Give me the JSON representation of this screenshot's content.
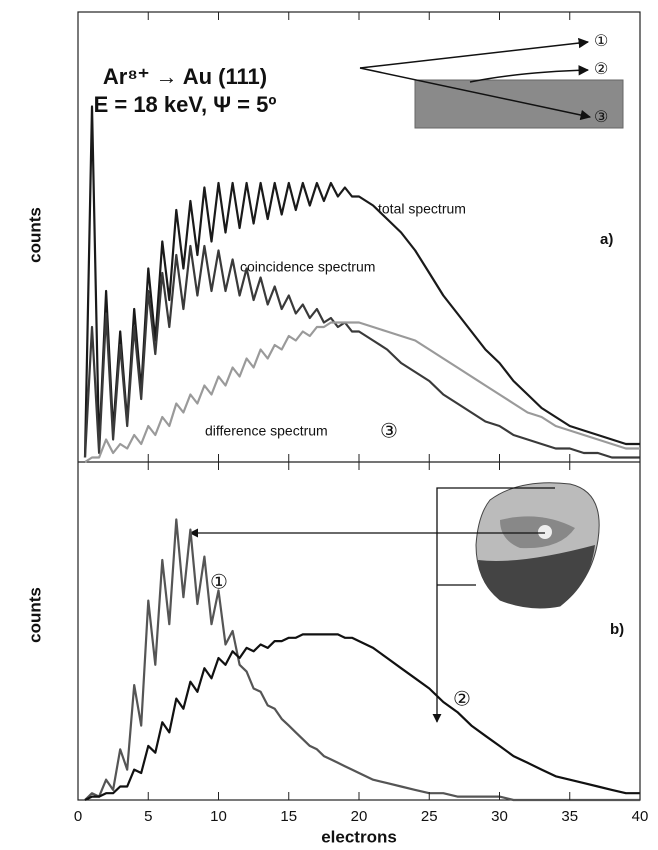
{
  "chart_data": [
    {
      "type": "line",
      "title": "Ar⁸⁺ → Au (111)",
      "subtitle": "E = 18 keV, Ψ = 5º",
      "panel_label": "a)",
      "ylabel": "counts",
      "annotation": "③",
      "inset_labels": [
        "①",
        "②",
        "③"
      ],
      "xlim": [
        0,
        40
      ],
      "ylim": [
        0,
        100
      ],
      "x": [
        0.5,
        1,
        1.5,
        2,
        2.5,
        3,
        3.5,
        4,
        4.5,
        5,
        5.5,
        6,
        6.5,
        7,
        7.5,
        8,
        8.5,
        9,
        9.5,
        10,
        10.5,
        11,
        11.5,
        12,
        12.5,
        13,
        13.5,
        14,
        14.5,
        15,
        15.5,
        16,
        16.5,
        17,
        17.5,
        18,
        18.5,
        19,
        19.5,
        20,
        21,
        22,
        23,
        24,
        25,
        26,
        27,
        28,
        29,
        30,
        31,
        32,
        33,
        34,
        35,
        36,
        37,
        38,
        39,
        40
      ],
      "series": [
        {
          "name": "total spectrum",
          "color": "#1a1a1a",
          "values": [
            1,
            79,
            3,
            38,
            7,
            29,
            9,
            34,
            16,
            43,
            27,
            49,
            36,
            56,
            43,
            58,
            46,
            61,
            49,
            62,
            51,
            62,
            52,
            62,
            53,
            62,
            54,
            62,
            55,
            62,
            56,
            62,
            57,
            62,
            58,
            62,
            59,
            61,
            59,
            59,
            57,
            54,
            51,
            47,
            42,
            37,
            33,
            29,
            25,
            22,
            18,
            15,
            12,
            10,
            8,
            7,
            6,
            5,
            4,
            4
          ]
        },
        {
          "name": "coincidence spectrum",
          "color": "#3a3a3a",
          "values": [
            1,
            30,
            2,
            33,
            5,
            26,
            8,
            30,
            14,
            38,
            24,
            42,
            30,
            46,
            34,
            48,
            37,
            48,
            38,
            47,
            38,
            45,
            37,
            43,
            36,
            41,
            35,
            39,
            34,
            37,
            33,
            35,
            32,
            34,
            31,
            32,
            30,
            31,
            29,
            29,
            27,
            25,
            22,
            20,
            18,
            15,
            13,
            11,
            9,
            8,
            6,
            5,
            4,
            3,
            3,
            2,
            2,
            1,
            1,
            1
          ]
        },
        {
          "name": "difference spectrum",
          "color": "#9a9a9a",
          "values": [
            0,
            1,
            1,
            5,
            2,
            4,
            3,
            6,
            4,
            8,
            6,
            10,
            8,
            13,
            11,
            15,
            13,
            17,
            15,
            19,
            17,
            21,
            19,
            23,
            21,
            25,
            23,
            26,
            25,
            28,
            27,
            29,
            28,
            30,
            30,
            31,
            31,
            31,
            31,
            31,
            30,
            29,
            28,
            27,
            25,
            23,
            21,
            19,
            17,
            15,
            13,
            11,
            10,
            8,
            7,
            6,
            5,
            4,
            3,
            3
          ]
        }
      ]
    },
    {
      "type": "line",
      "panel_label": "b)",
      "ylabel": "counts",
      "xlabel": "electrons",
      "xlim": [
        0,
        40
      ],
      "ylim": [
        0,
        100
      ],
      "xticks": [
        0,
        5,
        10,
        15,
        20,
        25,
        30,
        35,
        40
      ],
      "x": [
        0.5,
        1,
        1.5,
        2,
        2.5,
        3,
        3.5,
        4,
        4.5,
        5,
        5.5,
        6,
        6.5,
        7,
        7.5,
        8,
        8.5,
        9,
        9.5,
        10,
        10.5,
        11,
        11.5,
        12,
        12.5,
        13,
        13.5,
        14,
        14.5,
        15,
        15.5,
        16,
        16.5,
        17,
        17.5,
        18,
        18.5,
        19,
        19.5,
        20,
        21,
        22,
        23,
        24,
        25,
        26,
        27,
        28,
        29,
        30,
        31,
        32,
        33,
        34,
        35,
        36,
        37,
        38,
        39,
        40
      ],
      "series": [
        {
          "name": "①",
          "color": "#555555",
          "values": [
            0,
            2,
            1,
            6,
            3,
            15,
            9,
            34,
            22,
            59,
            40,
            71,
            52,
            83,
            60,
            80,
            58,
            72,
            52,
            62,
            46,
            50,
            40,
            38,
            33,
            32,
            28,
            27,
            24,
            22,
            20,
            18,
            16,
            15,
            13,
            12,
            11,
            10,
            9,
            8,
            6,
            5,
            4,
            3,
            2,
            2,
            1,
            1,
            1,
            1,
            0,
            0,
            0,
            0,
            0,
            0,
            0,
            0,
            0,
            0
          ]
        },
        {
          "name": "②",
          "color": "#111111",
          "values": [
            0,
            1,
            1,
            2,
            2,
            4,
            4,
            9,
            8,
            16,
            14,
            23,
            20,
            30,
            27,
            35,
            32,
            39,
            36,
            42,
            40,
            44,
            42,
            45,
            44,
            46,
            45,
            47,
            47,
            48,
            48,
            49,
            49,
            49,
            49,
            49,
            49,
            48,
            48,
            47,
            45,
            42,
            39,
            36,
            33,
            29,
            26,
            22,
            19,
            16,
            13,
            11,
            9,
            7,
            6,
            5,
            4,
            3,
            2,
            2
          ]
        }
      ]
    }
  ]
}
